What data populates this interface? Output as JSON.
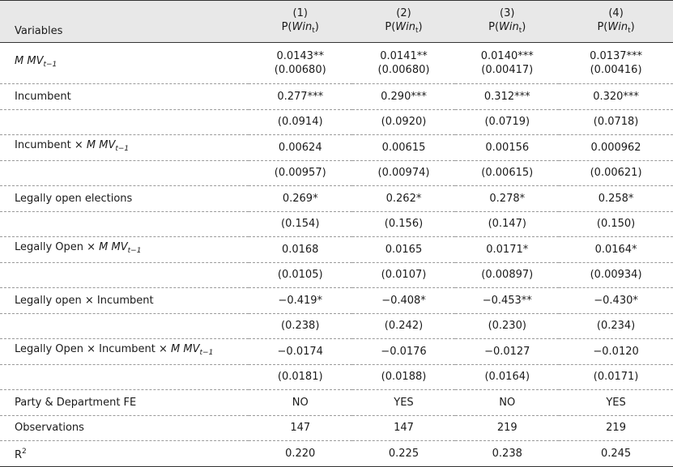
{
  "header": {
    "label": "Variables",
    "columns": [
      {
        "number": "(1)",
        "label": [
          {
            "t": "P("
          },
          {
            "t": "Win",
            "style": "italic"
          },
          {
            "t": "t",
            "style": "sub"
          },
          {
            "t": ")"
          }
        ]
      },
      {
        "number": "(2)",
        "label": [
          {
            "t": "P("
          },
          {
            "t": "Win",
            "style": "italic"
          },
          {
            "t": "t",
            "style": "sub"
          },
          {
            "t": ")"
          }
        ]
      },
      {
        "number": "(3)",
        "label": [
          {
            "t": "P("
          },
          {
            "t": "Win",
            "style": "italic"
          },
          {
            "t": "t",
            "style": "sub"
          },
          {
            "t": ")"
          }
        ]
      },
      {
        "number": "(4)",
        "label": [
          {
            "t": "P("
          },
          {
            "t": "Win",
            "style": "italic"
          },
          {
            "t": "t",
            "style": "sub"
          },
          {
            "t": ")"
          }
        ]
      }
    ]
  },
  "rows": [
    {
      "label": [
        {
          "t": "M MV",
          "style": "italic"
        },
        {
          "t": "t−1",
          "style": "isub"
        }
      ],
      "cells": [
        [
          "0.0143**",
          "(0.00680)"
        ],
        [
          "0.0141**",
          "(0.00680)"
        ],
        [
          "0.0140***",
          "(0.00417)"
        ],
        [
          "0.0137***",
          "(0.00416)"
        ]
      ]
    },
    {
      "label": [
        {
          "t": "Incumbent"
        }
      ],
      "cells": [
        "0.277***",
        "0.290***",
        "0.312***",
        "0.320***"
      ]
    },
    {
      "label": [],
      "cells": [
        "(0.0914)",
        "(0.0920)",
        "(0.0719)",
        "(0.0718)"
      ]
    },
    {
      "label": [
        {
          "t": "Incumbent × "
        },
        {
          "t": "M MV",
          "style": "italic"
        },
        {
          "t": "t−1",
          "style": "isub"
        }
      ],
      "cells": [
        "0.00624",
        "0.00615",
        "0.00156",
        "0.000962"
      ]
    },
    {
      "label": [],
      "cells": [
        "(0.00957)",
        "(0.00974)",
        "(0.00615)",
        "(0.00621)"
      ]
    },
    {
      "label": [
        {
          "t": "Legally open elections"
        }
      ],
      "cells": [
        "0.269*",
        "0.262*",
        "0.278*",
        "0.258*"
      ]
    },
    {
      "label": [],
      "cells": [
        "(0.154)",
        "(0.156)",
        "(0.147)",
        "(0.150)"
      ]
    },
    {
      "label": [
        {
          "t": "Legally Open × "
        },
        {
          "t": "M MV",
          "style": "italic"
        },
        {
          "t": "t−1",
          "style": "isub"
        }
      ],
      "cells": [
        "0.0168",
        "0.0165",
        "0.0171*",
        "0.0164*"
      ]
    },
    {
      "label": [],
      "cells": [
        "(0.0105)",
        "(0.0107)",
        "(0.00897)",
        "(0.00934)"
      ]
    },
    {
      "label": [
        {
          "t": "Legally open × Incumbent"
        }
      ],
      "cells": [
        "−0.419*",
        "−0.408*",
        "−0.453**",
        "−0.430*"
      ]
    },
    {
      "label": [],
      "cells": [
        "(0.238)",
        "(0.242)",
        "(0.230)",
        "(0.234)"
      ]
    },
    {
      "label": [
        {
          "t": "Legally Open × Incumbent × "
        },
        {
          "t": "M MV",
          "style": "italic"
        },
        {
          "t": "t−1",
          "style": "isub"
        }
      ],
      "cells": [
        "−0.0174",
        "−0.0176",
        "−0.0127",
        "−0.0120"
      ]
    },
    {
      "label": [],
      "cells": [
        "(0.0181)",
        "(0.0188)",
        "(0.0164)",
        "(0.0171)"
      ]
    },
    {
      "label": [
        {
          "t": "Party & Department FE"
        }
      ],
      "cells": [
        "NO",
        "YES",
        "NO",
        "YES"
      ]
    },
    {
      "label": [
        {
          "t": "Observations"
        }
      ],
      "cells": [
        "147",
        "147",
        "219",
        "219"
      ]
    },
    {
      "label": [
        {
          "t": "R"
        },
        {
          "t": "2",
          "style": "sup"
        }
      ],
      "cells": [
        "0.220",
        "0.225",
        "0.238",
        "0.245"
      ]
    }
  ]
}
